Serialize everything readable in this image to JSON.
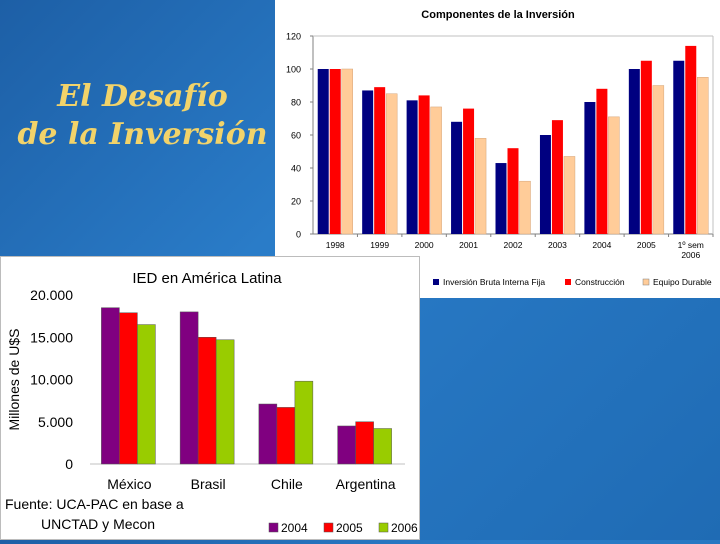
{
  "slide": {
    "title_line1": "El Desafío",
    "title_line2": "de la Inversión"
  },
  "chart_data": [
    {
      "type": "bar",
      "title": "Componentes de la Inversión",
      "categories": [
        "1998",
        "1999",
        "2000",
        "2001",
        "2002",
        "2003",
        "2004",
        "2005",
        "1º sem 2006"
      ],
      "series": [
        {
          "name": "Inversión Bruta Interna Fija",
          "color": "#000080",
          "values": [
            100,
            87,
            81,
            68,
            43,
            60,
            80,
            100,
            105
          ]
        },
        {
          "name": "Construcción",
          "color": "#ff0000",
          "values": [
            100,
            89,
            84,
            76,
            52,
            69,
            88,
            105,
            114
          ]
        },
        {
          "name": "Equipo Durable",
          "color": "#ffcc99",
          "values": [
            100,
            85,
            77,
            58,
            32,
            47,
            71,
            90,
            95
          ]
        }
      ],
      "yticks": [
        "0",
        "20",
        "40",
        "60",
        "80",
        "100",
        "120"
      ],
      "ylim": [
        0,
        120
      ],
      "grid": false,
      "legend": "bottom"
    },
    {
      "type": "bar",
      "title": "IED en América Latina",
      "ylabel": "Millones de U$S",
      "categories": [
        "México",
        "Brasil",
        "Chile",
        "Argentina"
      ],
      "series": [
        {
          "name": "2004",
          "color": "#800080",
          "values": [
            18500,
            18000,
            7100,
            4500
          ]
        },
        {
          "name": "2005",
          "color": "#ff0000",
          "values": [
            17900,
            15000,
            6700,
            5000
          ]
        },
        {
          "name": "2006",
          "color": "#99cc00",
          "values": [
            16500,
            14700,
            9800,
            4200
          ]
        }
      ],
      "yticks": [
        "0",
        "5.000",
        "10.000",
        "15.000",
        "20.000"
      ],
      "ylim": [
        0,
        20000
      ],
      "grid": false,
      "legend": "bottom-right",
      "source_line1": "Fuente: UCA-PAC en base a",
      "source_line2": "UNCTAD y Mecon"
    }
  ]
}
